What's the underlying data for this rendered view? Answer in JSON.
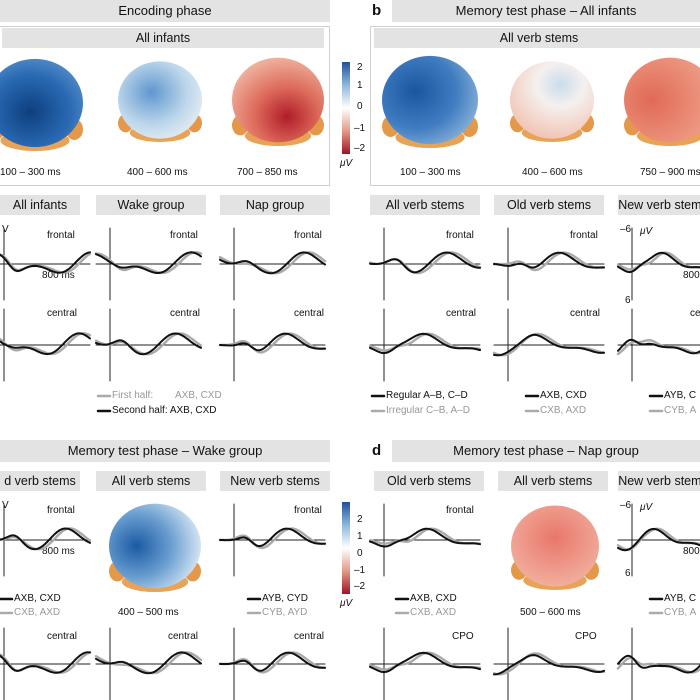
{
  "panels": {
    "a": {
      "label": "",
      "title": "Encoding phase",
      "sub": "All infants",
      "times": [
        "100 – 300 ms",
        "400 – 600 ms",
        "700 – 850 ms"
      ]
    },
    "b": {
      "label": "b",
      "title": "Memory test phase – All infants",
      "sub": "All verb stems",
      "times": [
        "100 – 300 ms",
        "400 – 600 ms",
        "750 – 900 ms"
      ]
    },
    "c": {
      "label": "",
      "title": "Memory test phase – Wake group"
    },
    "d": {
      "label": "d",
      "title": "Memory test phase – Nap group"
    }
  },
  "colorbar": {
    "ticks": [
      "2",
      "1",
      "0",
      "–1",
      "–2"
    ],
    "unit": "μV",
    "colors": {
      "pos": "#1f5fa8",
      "neg": "#b2182b"
    }
  },
  "erp_headers": {
    "a": [
      "All infants",
      "Wake group",
      "Nap group"
    ],
    "b": [
      "All verb stems",
      "Old verb stems",
      "New verb stems"
    ],
    "c": [
      "d verb stems",
      "All verb stems",
      "New verb stems"
    ],
    "d": [
      "Old verb stems",
      "All verb stems",
      "New verb stems"
    ]
  },
  "regions": {
    "frontal": "frontal",
    "central": "central",
    "cpo": "CPO"
  },
  "axis": {
    "uv": "μV",
    "ms800": "800 ms",
    "neg6": "–6",
    "pos6": "6",
    "v": "V"
  },
  "legend_a": {
    "first": "First half:",
    "first_cond": "AXB, CXD",
    "second": "Second half: AXB, CXD"
  },
  "legend_b": {
    "reg": "Regular  A–B, C–D",
    "irr": "Irregular C–B, A–D",
    "old1": "AXB, CXD",
    "old2": "CXB, AXD",
    "new1": "AYB, C",
    "new2": "CYB, A"
  },
  "legend_c": {
    "old1": "AXB, CXD",
    "old2": "CXB, AXD",
    "time": "400 – 500 ms",
    "new1": "AYB, CYD",
    "new2": "CYB, AYD"
  },
  "legend_d": {
    "old1": "AXB, CXD",
    "old2": "CXB, AXD",
    "time": "500 – 600 ms",
    "new1": "AYB, C",
    "new2": "CYB, A"
  }
}
